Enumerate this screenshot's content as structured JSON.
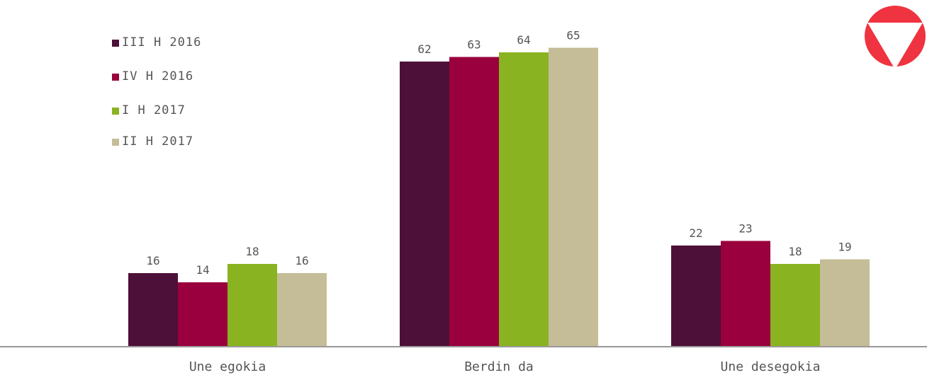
{
  "chart_data": {
    "type": "bar",
    "categories": [
      "Une egokia",
      "Berdin da",
      "Une desegokia"
    ],
    "series": [
      {
        "name": "III H 2016",
        "color": "#4d1038",
        "values": [
          16,
          62,
          22
        ]
      },
      {
        "name": "IV H 2016",
        "color": "#9a003e",
        "values": [
          14,
          63,
          23
        ]
      },
      {
        "name": "I H 2017",
        "color": "#8ab321",
        "values": [
          18,
          64,
          18
        ]
      },
      {
        "name": "II H 2017",
        "color": "#c5bd97",
        "values": [
          16,
          65,
          19
        ]
      }
    ],
    "ylim": [
      0,
      70
    ],
    "grid": false,
    "data_labels": true,
    "legend_position": "top-left",
    "axis_color": "#999999",
    "label_color": "#555555"
  },
  "badge": {
    "icon": "down-triangle-icon",
    "circle_color": "#ef3340",
    "arrow_color": "#ffffff"
  }
}
